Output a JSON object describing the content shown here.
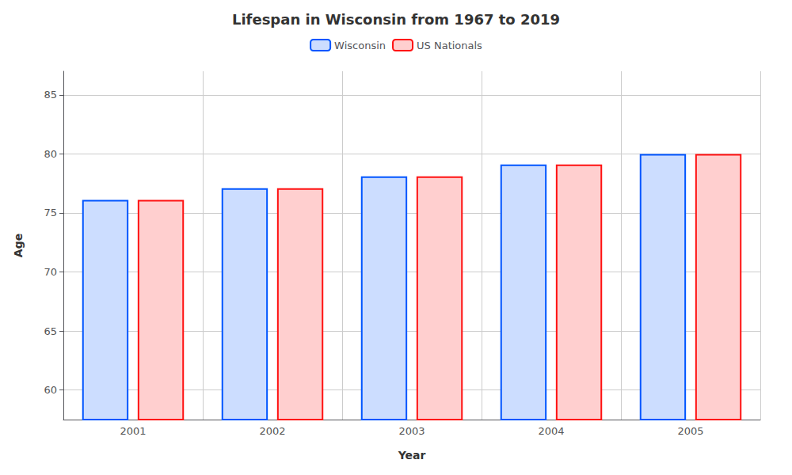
{
  "chart_data": {
    "type": "bar",
    "title": "Lifespan in Wisconsin from 1967 to 2019",
    "xlabel": "Year",
    "ylabel": "Age",
    "categories": [
      2001,
      2002,
      2003,
      2004,
      2005
    ],
    "series": [
      {
        "name": "Wisconsin",
        "color": "#0055ff",
        "values": [
          76.1,
          77.1,
          78.1,
          79.1,
          80.0
        ]
      },
      {
        "name": "US Nationals",
        "color": "#ff1111",
        "values": [
          76.1,
          77.1,
          78.1,
          79.1,
          80.0
        ]
      }
    ],
    "ylim": [
      57.5,
      87
    ],
    "yticks": [
      60,
      65,
      70,
      75,
      80,
      85
    ],
    "grid": true,
    "legend": "top"
  }
}
